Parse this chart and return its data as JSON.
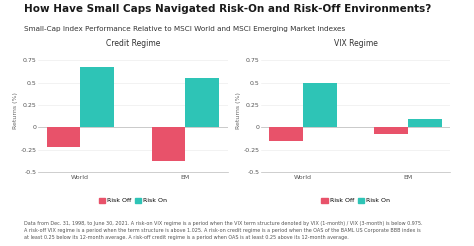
{
  "title": "How Have Small Caps Navigated Risk-On and Risk-Off Environments?",
  "subtitle": "Small-Cap Index Performance Relative to MSCI World and MSCI Emerging Market Indexes",
  "chart1_title": "Credit Regime",
  "chart2_title": "VIX Regime",
  "categories": [
    "World",
    "EM"
  ],
  "credit_risk_off": [
    -0.22,
    -0.37
  ],
  "credit_risk_on": [
    0.68,
    0.55
  ],
  "vix_risk_off": [
    -0.15,
    -0.07
  ],
  "vix_risk_on": [
    0.5,
    0.1
  ],
  "ylabel": "Returns (%)",
  "ylim": [
    -0.5,
    0.875
  ],
  "yticks": [
    -0.5,
    -0.25,
    0,
    0.25,
    0.5,
    0.75
  ],
  "color_risk_off": "#e8526a",
  "color_risk_on": "#2ec4b6",
  "legend_risk_off": "Risk Off",
  "legend_risk_on": "Risk On",
  "bar_width": 0.32,
  "footnote": "Data from Dec. 31, 1998, to June 30, 2021. A risk-on VIX regime is a period when the VIX term structure denoted by VIX (1-month) / VIX (3-month) is below 0.975.\nA risk-off VIX regime is a period when the term structure is above 1.025. A risk-on credit regime is a period when the OAS of the BAML US Corporate BBB index is\nat least 0.25 below its 12-month average. A risk-off credit regime is a period when OAS is at least 0.25 above its 12-month average.",
  "background_color": "#ffffff",
  "title_fontsize": 7.5,
  "subtitle_fontsize": 5.2,
  "chart_title_fontsize": 5.5,
  "tick_fontsize": 4.5,
  "ylabel_fontsize": 4.5,
  "legend_fontsize": 4.5,
  "footnote_fontsize": 3.5
}
